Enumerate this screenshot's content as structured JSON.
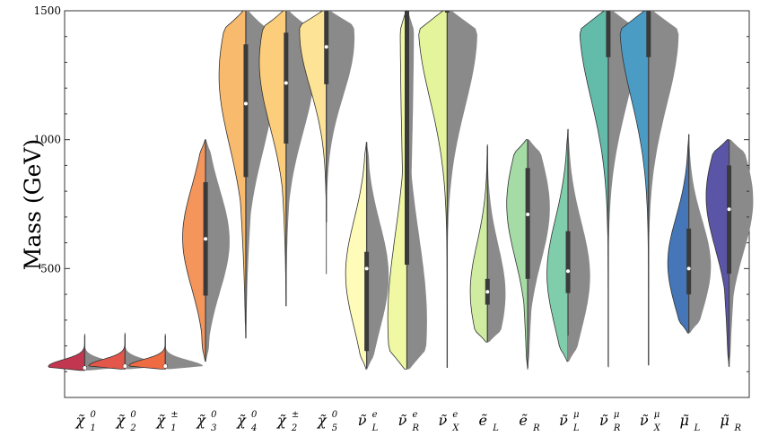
{
  "chart_data": {
    "type": "violin",
    "ylabel": "Mass (GeV)",
    "ylim": [
      0,
      1500
    ],
    "yticks": [
      500,
      1000,
      1500
    ],
    "grid": false,
    "categories": [
      {
        "id": "chi1_0",
        "base": "χ̃",
        "sub": "1",
        "sup": "0",
        "color": "#c2374f",
        "median": 115,
        "q1": 110,
        "q3": 122,
        "lo": 105,
        "hi": 240,
        "dist_lo": 105,
        "dist_hi": 245,
        "peak": 120,
        "peak_width": 0.95
      },
      {
        "id": "chi2_0",
        "base": "χ̃",
        "sub": "2",
        "sup": "0",
        "color": "#e2574a",
        "median": 122,
        "q1": 118,
        "q3": 128,
        "lo": 110,
        "hi": 245,
        "dist_lo": 110,
        "dist_hi": 248,
        "peak": 122,
        "peak_width": 0.95
      },
      {
        "id": "chi1_pm",
        "base": "χ̃",
        "sub": "1",
        "sup": "±",
        "color": "#ef6c42",
        "median": 122,
        "q1": 118,
        "q3": 128,
        "lo": 110,
        "hi": 240,
        "dist_lo": 110,
        "dist_hi": 245,
        "peak": 122,
        "peak_width": 0.95
      },
      {
        "id": "chi3_0",
        "base": "χ̃",
        "sub": "3",
        "sup": "0",
        "color": "#f4955c",
        "median": 615,
        "q1": 395,
        "q3": 835,
        "lo": 140,
        "hi": 1000,
        "dist_lo": 140,
        "dist_hi": 1000,
        "peak": 620,
        "peak_width": 0.6
      },
      {
        "id": "chi4_0",
        "base": "χ̃",
        "sub": "4",
        "sup": "0",
        "color": "#f8ba6d",
        "median": 1140,
        "q1": 855,
        "q3": 1370,
        "lo": 230,
        "hi": 1500,
        "dist_lo": 230,
        "dist_hi": 1500,
        "peak": 1250,
        "peak_width": 0.7
      },
      {
        "id": "chi2_pm",
        "base": "χ̃",
        "sub": "2",
        "sup": "±",
        "color": "#fccd7a",
        "median": 1220,
        "q1": 985,
        "q3": 1415,
        "lo": 355,
        "hi": 1500,
        "dist_lo": 355,
        "dist_hi": 1500,
        "peak": 1300,
        "peak_width": 0.7
      },
      {
        "id": "chi5_0",
        "base": "χ̃",
        "sub": "5",
        "sup": "0",
        "color": "#fde396",
        "median": 1360,
        "q1": 1215,
        "q3": 1500,
        "lo": 680,
        "hi": 1500,
        "dist_lo": 480,
        "dist_hi": 1500,
        "peak": 1420,
        "peak_width": 0.7
      },
      {
        "id": "nu_L_e",
        "base": "ν̃",
        "sub": "L",
        "sup": "e",
        "color": "#fefcb8",
        "median": 500,
        "q1": 180,
        "q3": 565,
        "lo": 115,
        "hi": 990,
        "dist_lo": 110,
        "dist_hi": 990,
        "peak": 480,
        "peak_width": 0.55
      },
      {
        "id": "nu_R_e",
        "base": "ν̃",
        "sub": "R",
        "sup": "e",
        "color": "#f0f8a4",
        "median": 1500,
        "q1": 515,
        "q3": 1500,
        "lo": 110,
        "hi": 1500,
        "dist_lo": 110,
        "dist_hi": 1500,
        "peak": 300,
        "peak_width": 0.5
      },
      {
        "id": "nu_X_e",
        "base": "ν̃",
        "sub": "X",
        "sup": "e",
        "color": "#e4f49a",
        "median": 1500,
        "q1": 1500,
        "q3": 1500,
        "lo": 115,
        "hi": 1500,
        "dist_lo": 115,
        "dist_hi": 1500,
        "peak": 1450,
        "peak_width": 0.75
      },
      {
        "id": "e_L",
        "base": "ẽ",
        "sub": "L",
        "sup": "",
        "color": "#cfeca0",
        "median": 410,
        "q1": 360,
        "q3": 460,
        "lo": 215,
        "hi": 975,
        "dist_lo": 215,
        "dist_hi": 980,
        "peak": 410,
        "peak_width": 0.45
      },
      {
        "id": "e_R",
        "base": "ẽ",
        "sub": "R",
        "sup": "",
        "color": "#a5dba4",
        "median": 710,
        "q1": 460,
        "q3": 890,
        "lo": 115,
        "hi": 1000,
        "dist_lo": 110,
        "dist_hi": 1000,
        "peak": 750,
        "peak_width": 0.55
      },
      {
        "id": "nu_L_mu",
        "base": "ν̃",
        "sub": "L",
        "sup": "μ",
        "color": "#7fcdaa",
        "median": 490,
        "q1": 405,
        "q3": 645,
        "lo": 240,
        "hi": 1040,
        "dist_lo": 140,
        "dist_hi": 1040,
        "peak": 480,
        "peak_width": 0.55
      },
      {
        "id": "nu_R_mu",
        "base": "ν̃",
        "sub": "R",
        "sup": "μ",
        "color": "#63bbaa",
        "median": 1500,
        "q1": 1320,
        "q3": 1500,
        "lo": 120,
        "hi": 1500,
        "dist_lo": 120,
        "dist_hi": 1500,
        "peak": 1450,
        "peak_width": 0.75
      },
      {
        "id": "nu_X_mu",
        "base": "ν̃",
        "sub": "X",
        "sup": "μ",
        "color": "#4a9cc5",
        "median": 1500,
        "q1": 1320,
        "q3": 1500,
        "lo": 125,
        "hi": 1500,
        "dist_lo": 125,
        "dist_hi": 1500,
        "peak": 1450,
        "peak_width": 0.75
      },
      {
        "id": "mu_L",
        "base": "μ̃",
        "sub": "L",
        "sup": "",
        "color": "#4476b8",
        "median": 500,
        "q1": 400,
        "q3": 655,
        "lo": 255,
        "hi": 1020,
        "dist_lo": 250,
        "dist_hi": 1020,
        "peak": 520,
        "peak_width": 0.55
      },
      {
        "id": "mu_R",
        "base": "μ̃",
        "sub": "R",
        "sup": "",
        "color": "#5a55a6",
        "median": 730,
        "q1": 480,
        "q3": 900,
        "lo": 120,
        "hi": 1000,
        "dist_lo": 120,
        "dist_hi": 1000,
        "peak": 780,
        "peak_width": 0.6
      }
    ],
    "comparison_color": "#8a8a8a"
  }
}
